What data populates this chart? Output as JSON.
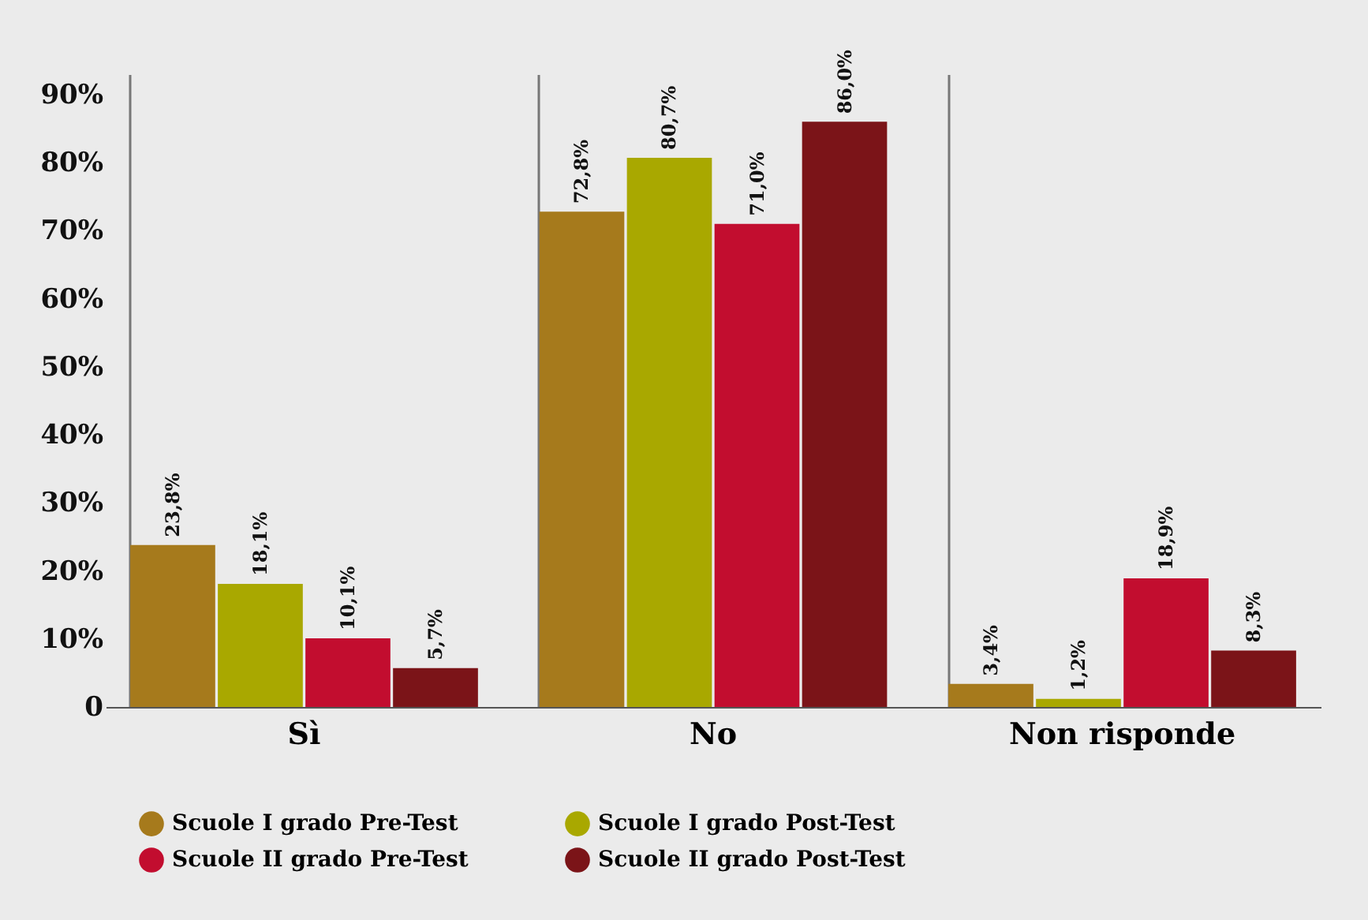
{
  "chart_data": {
    "type": "bar",
    "categories": [
      "Sì",
      "No",
      "Non risponde"
    ],
    "series": [
      {
        "name": "Scuole I grado Pre-Test",
        "color": "#a67a1c",
        "values": [
          23.8,
          72.8,
          3.4
        ],
        "value_labels": [
          "23,8%",
          "72,8%",
          "3,4%"
        ]
      },
      {
        "name": "Scuole I grado Post-Test",
        "color": "#a9a800",
        "values": [
          18.1,
          80.7,
          1.2
        ],
        "value_labels": [
          "18,1%",
          "80,7%",
          "1,2%"
        ]
      },
      {
        "name": "Scuole II grado Pre-Test",
        "color": "#c20d2f",
        "values": [
          10.1,
          71.0,
          18.9
        ],
        "value_labels": [
          "10,1%",
          "71,0%",
          "18,9%"
        ]
      },
      {
        "name": "Scuole II grado Post-Test",
        "color": "#7b1418",
        "values": [
          5.7,
          86.0,
          8.3
        ],
        "value_labels": [
          "5,7%",
          "86,0%",
          "8,3%"
        ]
      }
    ],
    "ylim": [
      0,
      93
    ],
    "yticks": [
      0,
      {
        "value": 10,
        "label": "10%"
      },
      {
        "value": 20,
        "label": "20%"
      },
      {
        "value": 30,
        "label": "30%"
      },
      {
        "value": 40,
        "label": "40%"
      },
      {
        "value": 50,
        "label": "50%"
      },
      {
        "value": 60,
        "label": "60%"
      },
      {
        "value": 70,
        "label": "70%"
      },
      {
        "value": 80,
        "label": "80%"
      },
      {
        "value": 90,
        "label": "90%"
      }
    ],
    "grid": "x",
    "legend": "bottom"
  }
}
